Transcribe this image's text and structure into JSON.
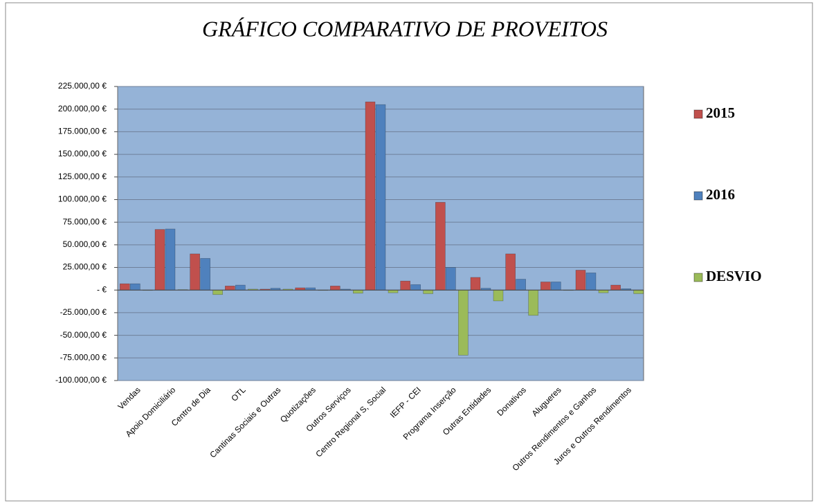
{
  "chart_data": {
    "type": "bar",
    "title": "GRÁFICO COMPARATIVO DE PROVEITOS",
    "categories": [
      "Vendas",
      "Apoio Domiciliário",
      "Centro de Dia",
      "OTL",
      "Cantinas Sociais e Outras",
      "Quotizações",
      "Outros Serviços",
      "Centro Regional S, Social",
      "IEFP - CEI",
      "Programa Inserção",
      "Outras Entidades",
      "Donativos",
      "Alugueres",
      "Outros Rendimentos e Ganhos",
      "Juros e Outros Rendimentos"
    ],
    "series": [
      {
        "name": "2015",
        "color": "#c0504d",
        "values": [
          7000,
          67000,
          40000,
          4500,
          1000,
          2500,
          4500,
          208000,
          10000,
          97000,
          14000,
          40000,
          9000,
          22000,
          5500
        ]
      },
      {
        "name": "2016",
        "color": "#4f81bd",
        "values": [
          7000,
          67500,
          35000,
          5500,
          2000,
          2500,
          1000,
          205000,
          6000,
          25000,
          2000,
          12000,
          9000,
          19000,
          1500
        ]
      },
      {
        "name": "DESVIO",
        "color": "#9bbb59",
        "values": [
          0,
          500,
          -5000,
          1000,
          1000,
          0,
          -3500,
          -3000,
          -4000,
          -72000,
          -12000,
          -28000,
          0,
          -3000,
          -4000
        ]
      }
    ],
    "ylim": [
      -100000,
      225000
    ],
    "yticks": [
      {
        "value": -100000,
        "label": "-100.000,00 €"
      },
      {
        "value": -75000,
        "label": "-75.000,00 €"
      },
      {
        "value": -50000,
        "label": "-50.000,00 €"
      },
      {
        "value": -25000,
        "label": "-25.000,00 €"
      },
      {
        "value": 0,
        "label": "-   €"
      },
      {
        "value": 25000,
        "label": "25.000,00 €"
      },
      {
        "value": 50000,
        "label": "50.000,00 €"
      },
      {
        "value": 75000,
        "label": "75.000,00 €"
      },
      {
        "value": 100000,
        "label": "100.000,00 €"
      },
      {
        "value": 125000,
        "label": "125.000,00 €"
      },
      {
        "value": 150000,
        "label": "150.000,00 €"
      },
      {
        "value": 175000,
        "label": "175.000,00 €"
      },
      {
        "value": 200000,
        "label": "200.000,00 €"
      },
      {
        "value": 225000,
        "label": "225.000,00 €"
      }
    ],
    "grid": true,
    "legend": "right"
  }
}
